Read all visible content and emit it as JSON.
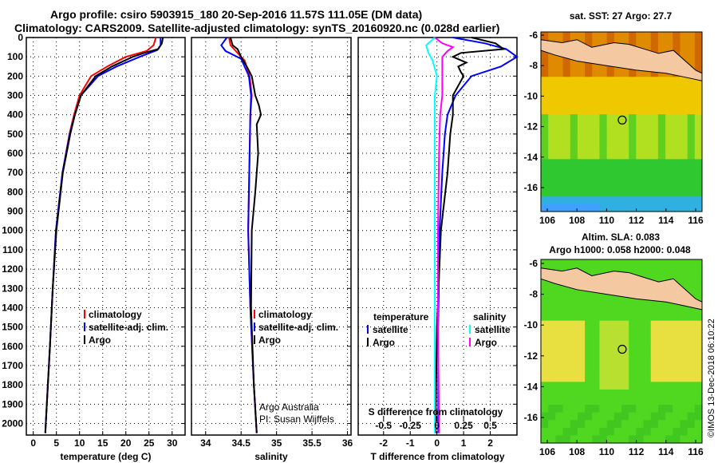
{
  "title_line1": "Argo profile: csiro 5903915_180 20-Sep-2016 11.57S 111.05E (DM data)",
  "title_line2": "Climatology: CARS2009. Satellite-adjusted climatology: synTS_20160920.nc (0.028d earlier)",
  "colors": {
    "climatology": "#ff0000",
    "satellite": "#0000ff",
    "argo": "#000000",
    "sal_satellite": "#00ffff",
    "sal_argo": "#ff00ff"
  },
  "chart_data": [
    {
      "type": "line",
      "xlabel": "temperature (deg C)",
      "ylabel": "",
      "xlim": [
        -1.5,
        32.8
      ],
      "ylim": [
        2100,
        0
      ],
      "xticks": [
        "0",
        "5",
        "10",
        "15",
        "20",
        "25",
        "30"
      ],
      "xtick_values": [
        0,
        5,
        10,
        15,
        20,
        25,
        30
      ],
      "yticks": [
        "0",
        "100",
        "200",
        "300",
        "400",
        "500",
        "600",
        "700",
        "800",
        "900",
        "1000",
        "1100",
        "1200",
        "1300",
        "1400",
        "1500",
        "1600",
        "1700",
        "1800",
        "1900",
        "2000"
      ],
      "legend": [
        "climatology",
        "satellite-adj. clim.",
        "Argo"
      ],
      "series": [
        {
          "name": "climatology",
          "color": "#ff0000",
          "depth": [
            0,
            40,
            70,
            100,
            150,
            200,
            300,
            400,
            500,
            700,
            1000,
            1300,
            1600,
            2000,
            2050
          ],
          "values": [
            26.5,
            26,
            24.5,
            20,
            16,
            12.5,
            10,
            8.8,
            7.8,
            6.3,
            4.9,
            4.2,
            3.6,
            2.7,
            2.6
          ]
        },
        {
          "name": "satellite-adj. clim.",
          "color": "#0000ff",
          "depth": [
            0,
            40,
            65,
            100,
            150,
            200,
            300,
            400,
            500,
            700,
            1000,
            1300,
            1600,
            2000,
            2050
          ],
          "values": [
            27.5,
            27.5,
            26.8,
            23,
            18,
            14,
            10.3,
            9,
            7.9,
            6.3,
            4.9,
            4.2,
            3.6,
            2.7,
            2.6
          ]
        },
        {
          "name": "Argo",
          "color": "#000000",
          "depth": [
            0,
            30,
            60,
            80,
            100,
            150,
            200,
            300,
            400,
            500,
            700,
            1000,
            1300,
            1600,
            2000,
            2050
          ],
          "values": [
            28,
            27.8,
            27,
            24,
            21.5,
            17,
            13.5,
            10.3,
            9,
            8,
            6.4,
            5,
            4.2,
            3.6,
            2.7,
            2.6
          ]
        }
      ]
    },
    {
      "type": "line",
      "xlabel": "salinity",
      "xlim": [
        33.8,
        36.05
      ],
      "ylim": [
        2100,
        0
      ],
      "xticks": [
        "34",
        "34.5",
        "35",
        "35.5",
        "36"
      ],
      "xtick_values": [
        34,
        34.5,
        35,
        35.5,
        36
      ],
      "legend": [
        "climatology",
        "satellite-adj. clim.",
        "Argo"
      ],
      "annotation": [
        "Argo Australia",
        "PI: Susan Wijffels"
      ],
      "series": [
        {
          "name": "climatology",
          "color": "#ff0000",
          "depth": [
            0,
            40,
            80,
            120,
            200,
            300,
            400,
            600,
            1000,
            1400,
            1800,
            2050
          ],
          "values": [
            34.33,
            34.35,
            34.45,
            34.55,
            34.62,
            34.65,
            34.63,
            34.62,
            34.6,
            34.63,
            34.68,
            34.72
          ]
        },
        {
          "name": "satellite-adj. clim.",
          "color": "#0000ff",
          "depth": [
            0,
            40,
            70,
            110,
            200,
            300,
            400,
            600,
            1000,
            1400,
            1800,
            2050
          ],
          "values": [
            34.3,
            34.22,
            34.28,
            34.5,
            34.61,
            34.64,
            34.63,
            34.62,
            34.6,
            34.63,
            34.68,
            34.72
          ]
        },
        {
          "name": "Argo",
          "color": "#000000",
          "depth": [
            0,
            40,
            60,
            100,
            150,
            200,
            300,
            350,
            400,
            450,
            600,
            800,
            1000,
            1400,
            1800,
            2050
          ],
          "values": [
            34.35,
            34.38,
            34.45,
            34.5,
            34.58,
            34.65,
            34.7,
            34.75,
            34.78,
            34.72,
            34.74,
            34.7,
            34.65,
            34.64,
            34.68,
            34.72
          ]
        }
      ]
    },
    {
      "type": "line",
      "xlabel": "T difference from climatology",
      "xlim": [
        -2.95,
        3
      ],
      "ylim": [
        2100,
        0
      ],
      "xticks": [
        "-2",
        "-1",
        "0",
        "1",
        "2"
      ],
      "xtick_values": [
        -2,
        -1,
        0,
        1,
        2
      ],
      "s_axis_label": "S difference from climatology",
      "s_ticks": [
        "-0.5",
        "-0.25",
        "0",
        "0.25",
        "0.5"
      ],
      "s_tick_values": [
        -0.5,
        -0.25,
        0,
        0.25,
        0.5
      ],
      "legend": {
        "temperature_title": "temperature",
        "salinity_title": "salinity",
        "entries": [
          "satellite",
          "Argo",
          "satellite",
          "Argo"
        ]
      },
      "series": [
        {
          "name": "T satellite",
          "color": "#0000ff",
          "scale": "T",
          "depth": [
            0,
            30,
            60,
            80,
            100,
            150,
            200,
            300,
            400,
            500,
            700,
            1000,
            1500,
            2000,
            2050
          ],
          "values": [
            0.6,
            1.8,
            2.6,
            2.8,
            3,
            2.4,
            1.3,
            0.7,
            0.4,
            0.3,
            0.2,
            0.1,
            0.05,
            0.05,
            0.05
          ]
        },
        {
          "name": "T Argo",
          "color": "#000000",
          "scale": "T",
          "depth": [
            0,
            30,
            60,
            80,
            100,
            130,
            150,
            180,
            200,
            300,
            400,
            500,
            700,
            1000,
            1500,
            2000,
            2050
          ],
          "values": [
            1.3,
            2.2,
            2.5,
            0.9,
            0.6,
            1.1,
            0.8,
            0.9,
            1,
            0.6,
            0.6,
            0.5,
            0.4,
            0.15,
            0,
            -0.05,
            -0.05
          ]
        },
        {
          "name": "S satellite",
          "color": "#00ffff",
          "scale": "S",
          "depth": [
            0,
            40,
            80,
            120,
            200,
            300,
            400,
            600,
            1000,
            1500,
            2000,
            2050
          ],
          "values": [
            -0.02,
            -0.1,
            -0.08,
            -0.04,
            0,
            -0.02,
            -0.02,
            -0.02,
            -0.02,
            -0.02,
            -0.02,
            -0.02
          ]
        },
        {
          "name": "S Argo",
          "color": "#ff00ff",
          "scale": "S",
          "depth": [
            0,
            30,
            50,
            70,
            100,
            200,
            300,
            400,
            600,
            1000,
            1500,
            2000,
            2050
          ],
          "values": [
            -0.02,
            0.05,
            0.15,
            0.1,
            0.05,
            0.05,
            0.05,
            0.03,
            0.02,
            0.01,
            0.01,
            0.02,
            0.02
          ]
        }
      ]
    },
    {
      "type": "heatmap",
      "title": "sat. SST: 27 Argo: 27.7",
      "xticks": [
        "106",
        "108",
        "110",
        "112",
        "114",
        "116"
      ],
      "yticks": [
        "-6",
        "-8",
        "-10",
        "-12",
        "-14",
        "-16"
      ],
      "argo_lon": 111.05,
      "argo_lat": -11.57
    },
    {
      "type": "heatmap",
      "title": "Altim. SLA: 0.083",
      "subtitle": "Argo h1000: 0.058 h2000: 0.048",
      "xticks": [
        "106",
        "108",
        "110",
        "112",
        "114",
        "116"
      ],
      "yticks": [
        "-6",
        "-8",
        "-10",
        "-12",
        "-14",
        "-16"
      ],
      "argo_lon": 111.05,
      "argo_lat": -11.57
    }
  ],
  "credit": "©IMOS 13-Dec-2018 06:10:22"
}
